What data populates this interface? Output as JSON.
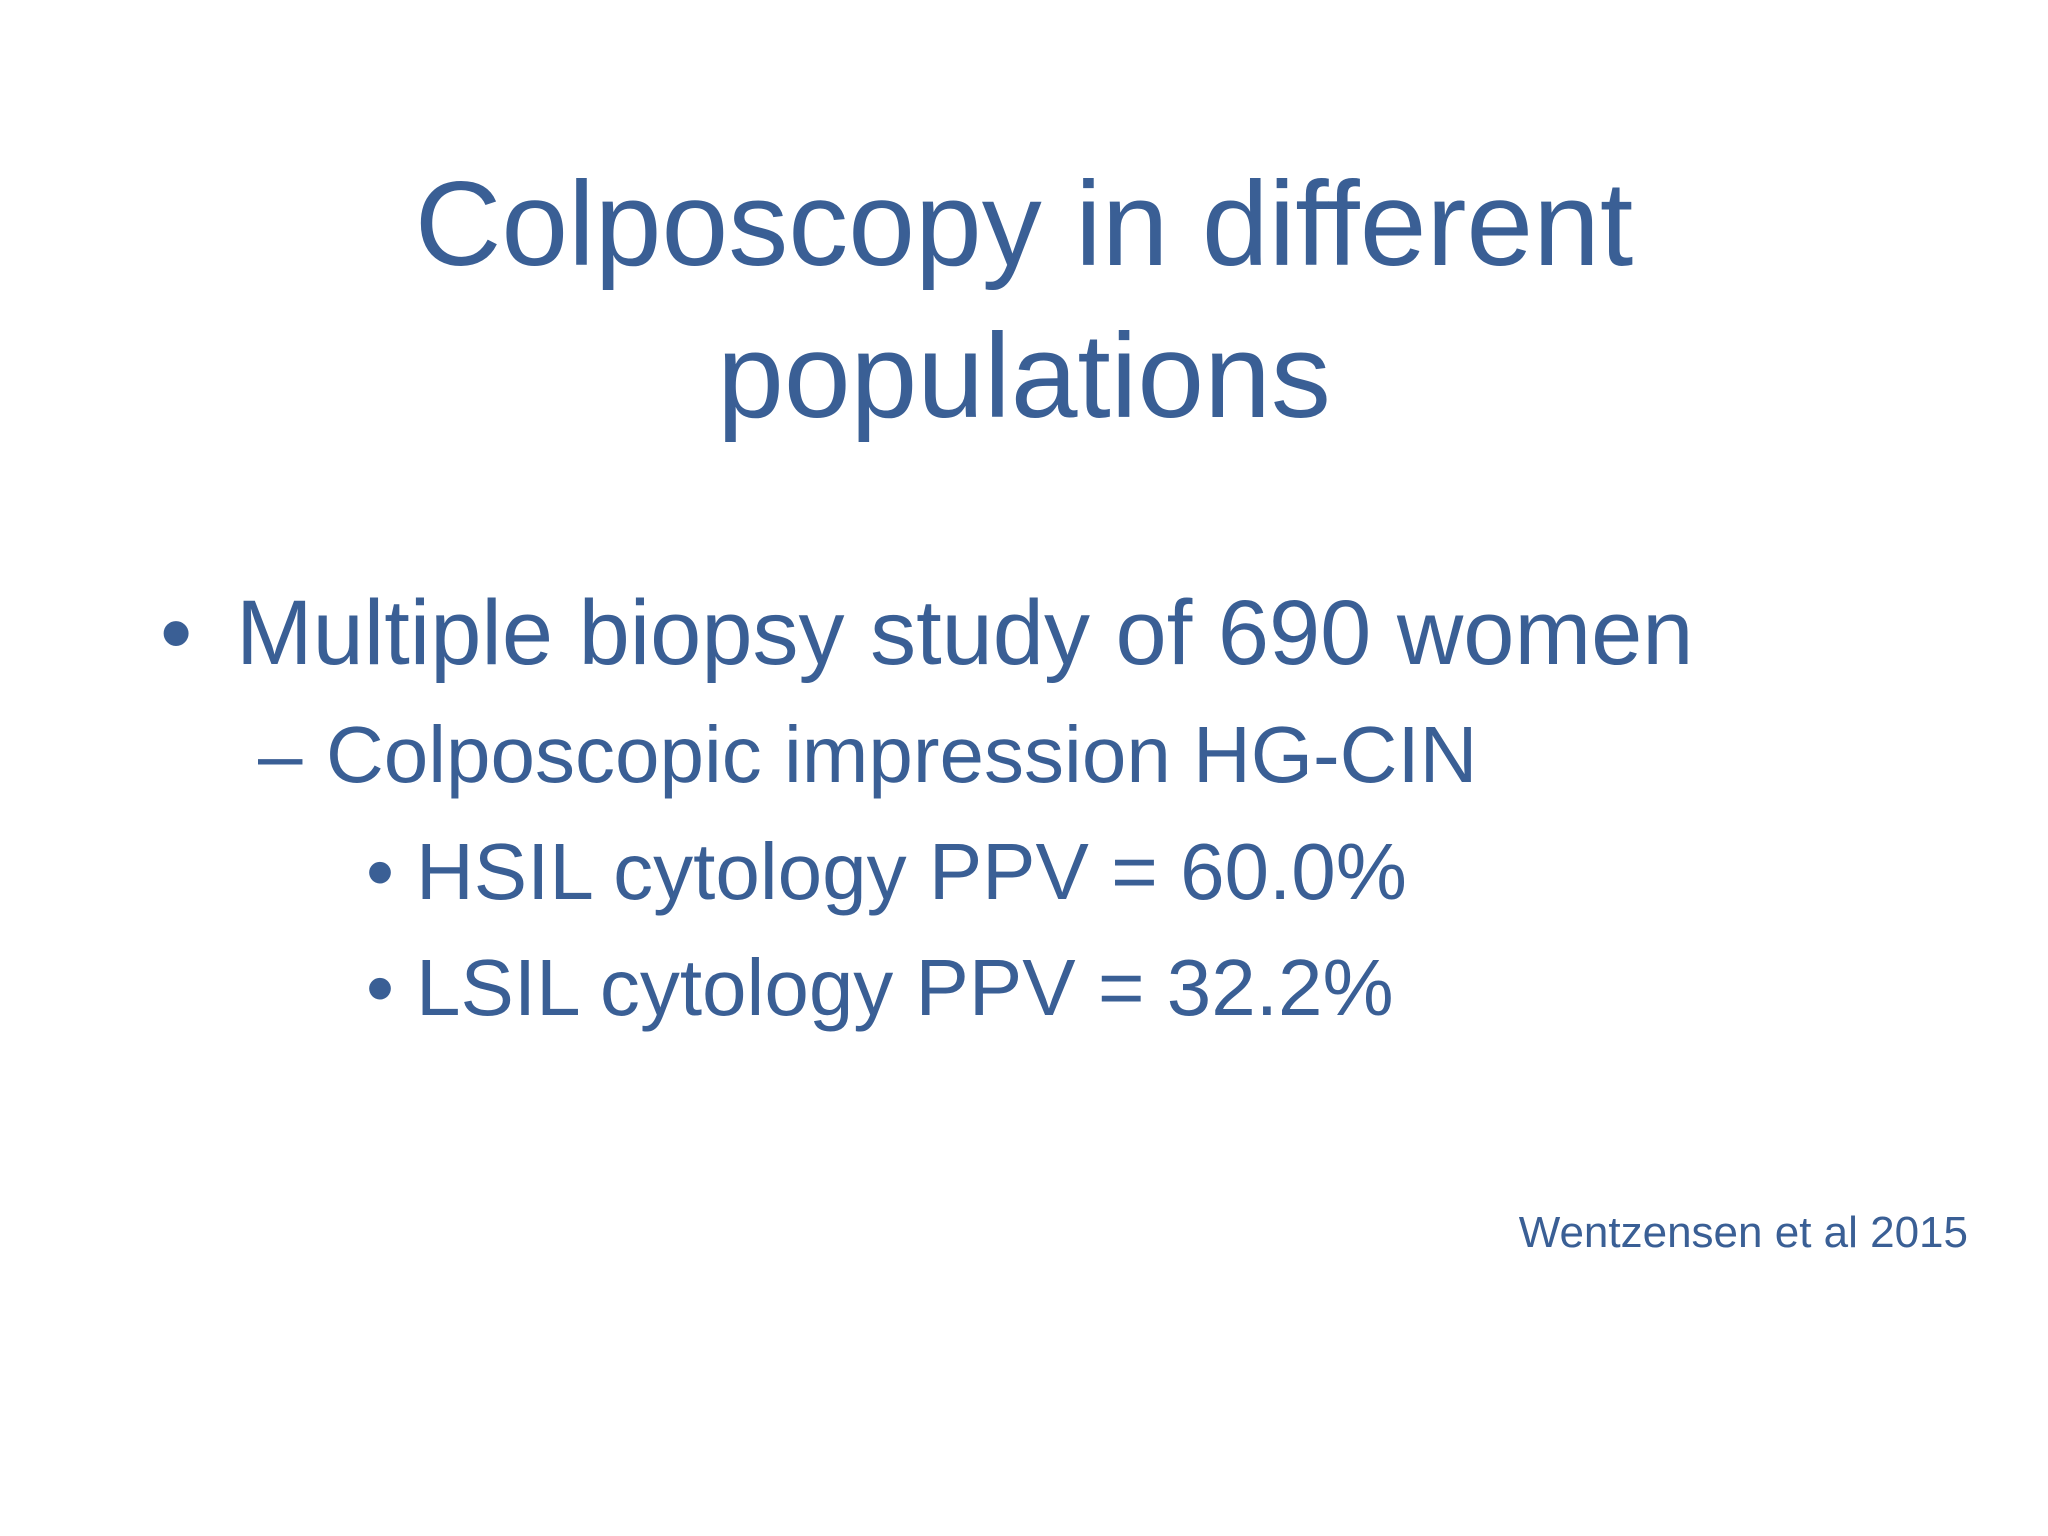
{
  "slide": {
    "title_line1": "Colposcopy in different",
    "title_line2": "populations",
    "bullets": [
      {
        "marker": "•",
        "text": "Multiple biopsy study of 690 women"
      },
      {
        "marker": "–",
        "text": "Colposcopic impression HG-CIN"
      },
      {
        "marker": "•",
        "text": "HSIL cytology PPV = 60.0%"
      },
      {
        "marker": "•",
        "text": "LSIL cytology PPV = 32.2%"
      }
    ],
    "citation": "Wentzensen et al 2015",
    "text_color": "#3a5f95"
  }
}
